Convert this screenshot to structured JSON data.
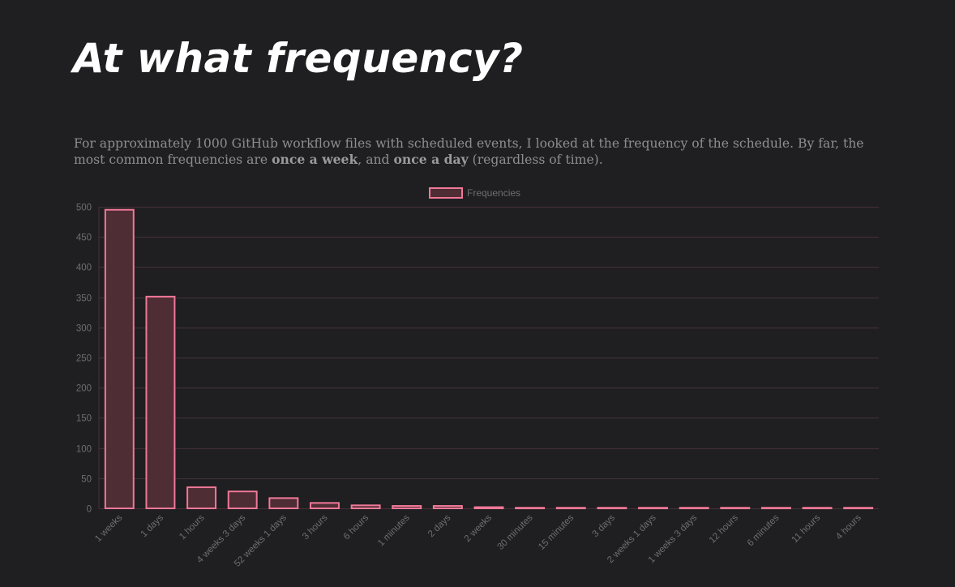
{
  "page": {
    "title": "At what frequency?",
    "intro": {
      "part1": "For approximately 1000 GitHub workflow files with scheduled events, I looked at the frequency of the schedule. By far, the most common frequencies are ",
      "bold1": "once a week",
      "part2": ", and ",
      "bold2": "once a day",
      "part3": " (regardless of time)."
    }
  },
  "chart_data": {
    "type": "bar",
    "title": "",
    "xlabel": "",
    "ylabel": "",
    "legend": {
      "position": "top-center",
      "entries": [
        "Frequencies"
      ]
    },
    "categories": [
      "1 weeks",
      "1 days",
      "1 hours",
      "4 weeks 3 days",
      "52 weeks 1 days",
      "3 hours",
      "6 hours",
      "1 minutes",
      "2 days",
      "2 weeks",
      "30 minutes",
      "15 minutes",
      "3 days",
      "2 weeks 1 days",
      "1 weeks 3 days",
      "12 hours",
      "6 minutes",
      "11 hours",
      "4 hours"
    ],
    "series": [
      {
        "name": "Frequencies",
        "values": [
          495,
          351,
          35,
          28,
          17,
          9,
          5,
          4,
          4,
          2,
          1,
          1,
          1,
          1,
          1,
          1,
          1,
          1,
          1
        ]
      }
    ],
    "ylim": [
      0,
      500
    ],
    "yticks": [
      0,
      50,
      100,
      150,
      200,
      250,
      300,
      350,
      400,
      450,
      500
    ],
    "grid": true,
    "colors": {
      "bar_fill": "#4e2d34",
      "bar_border": "#f07898",
      "grid": "#46303a",
      "tick_text": "#6e6e70"
    }
  }
}
